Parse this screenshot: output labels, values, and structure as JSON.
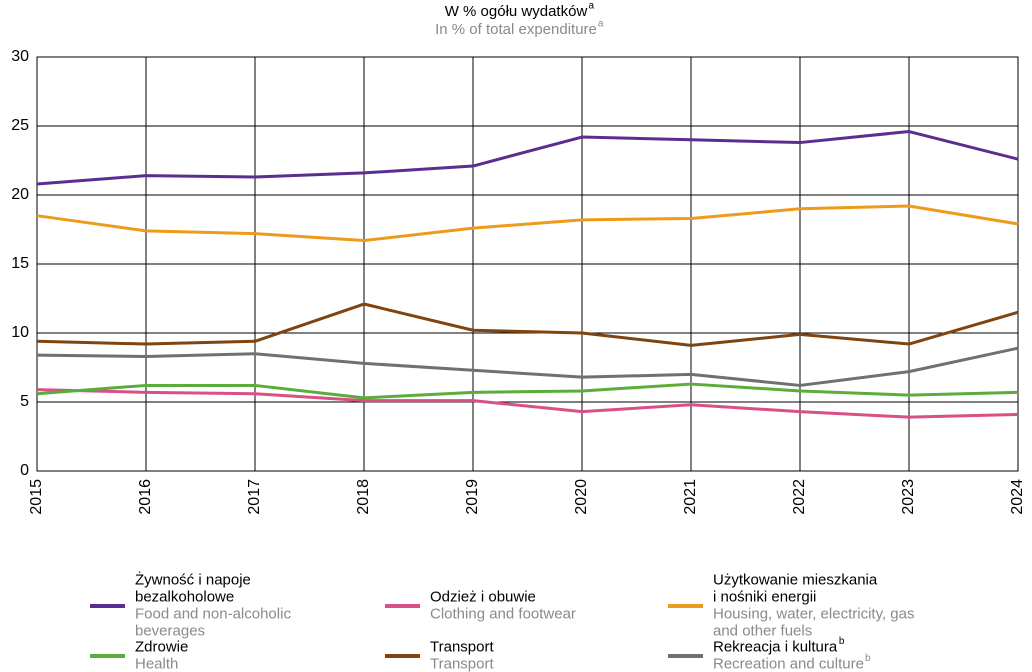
{
  "chart_data": {
    "type": "line",
    "title": "W % ogółu wydatków",
    "title_sup": "a",
    "subtitle": "In % of total expenditure",
    "subtitle_sup": "a",
    "x": [
      "2015",
      "2016",
      "2017",
      "2018",
      "2019",
      "2020",
      "2021",
      "2022",
      "2023",
      "2024"
    ],
    "ylim": [
      0,
      30
    ],
    "yticks": [
      0,
      5,
      10,
      15,
      20,
      25,
      30
    ],
    "grid": true,
    "series": [
      {
        "name": [
          "Żywność i napoje",
          "bezalkoholowe"
        ],
        "name_en": [
          "Food and non-alcoholic",
          "beverages"
        ],
        "color": "#5b2d90",
        "values": [
          20.8,
          21.4,
          21.3,
          21.6,
          22.1,
          24.2,
          24.0,
          23.8,
          24.6,
          22.6
        ]
      },
      {
        "name": [
          "Odzież i obuwie"
        ],
        "name_en": [
          "Clothing and footwear"
        ],
        "color": "#d94f87",
        "values": [
          5.9,
          5.7,
          5.6,
          5.1,
          5.1,
          4.3,
          4.8,
          4.3,
          3.9,
          4.1
        ]
      },
      {
        "name": [
          "Użytkowanie mieszkania",
          "i nośniki energii"
        ],
        "name_en": [
          "Housing, water, electricity, gas",
          "and other fuels"
        ],
        "color": "#ee9a1c",
        "values": [
          18.5,
          17.4,
          17.2,
          16.7,
          17.6,
          18.2,
          18.3,
          19.0,
          19.2,
          17.9
        ]
      },
      {
        "name": [
          "Zdrowie"
        ],
        "name_en": [
          "Health"
        ],
        "color": "#5aad3a",
        "values": [
          5.6,
          6.2,
          6.2,
          5.3,
          5.7,
          5.8,
          6.3,
          5.8,
          5.5,
          5.7
        ]
      },
      {
        "name": [
          "Transport"
        ],
        "name_en": [
          "Transport"
        ],
        "color": "#7f4410",
        "values": [
          9.4,
          9.2,
          9.4,
          12.1,
          10.2,
          10.0,
          9.1,
          9.9,
          9.2,
          11.5
        ]
      },
      {
        "name": [
          "Rekreacja i kultura"
        ],
        "name_en": [
          "Recreation and culture"
        ],
        "name_sup": "b",
        "color": "#707070",
        "values": [
          8.4,
          8.3,
          8.5,
          7.8,
          7.3,
          6.8,
          7.0,
          6.2,
          7.2,
          8.9
        ]
      }
    ]
  }
}
